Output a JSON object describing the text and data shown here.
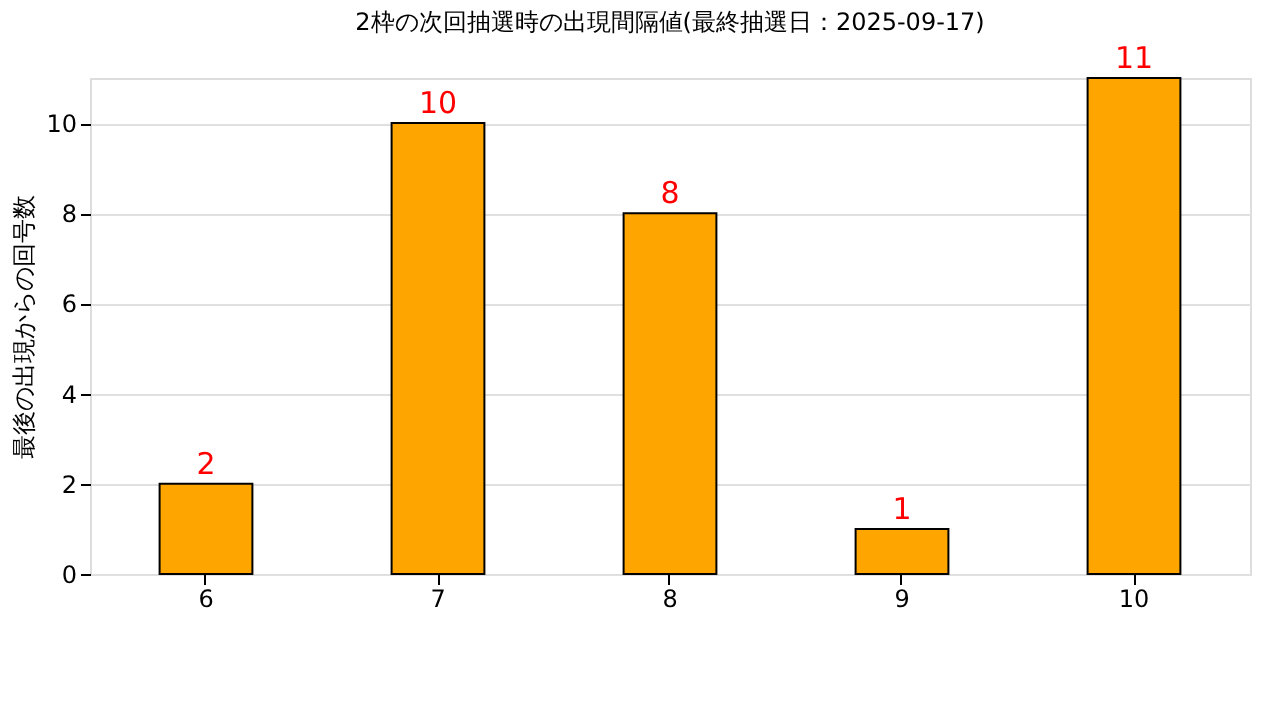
{
  "chart_data": {
    "type": "bar",
    "title": "2枠の次回抽選時の出現間隔値(最終抽選日：2025-09-17)",
    "ylabel": "最後の出現からの回号数",
    "categories": [
      "6",
      "7",
      "8",
      "9",
      "10"
    ],
    "values": [
      2,
      10,
      8,
      1,
      11
    ],
    "color": "#ffa500",
    "ylim": [
      0,
      11
    ],
    "yticks": [
      0,
      2,
      4,
      6,
      8,
      10
    ],
    "grid": "y",
    "data_labels": true
  }
}
